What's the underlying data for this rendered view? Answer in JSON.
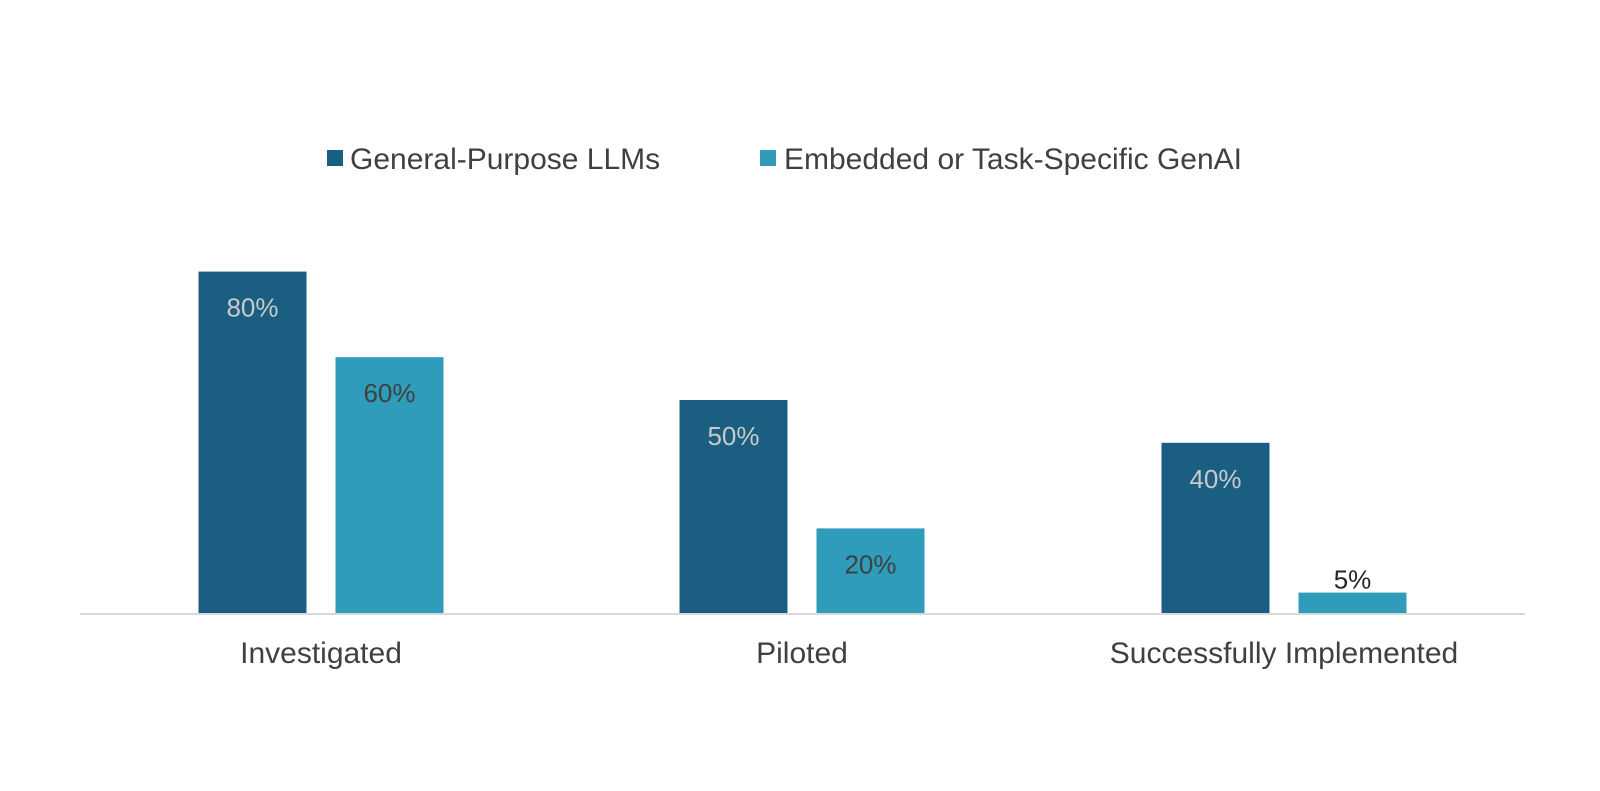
{
  "chart_data": {
    "type": "bar",
    "categories": [
      "Investigated",
      "Piloted",
      "Successfully Implemented"
    ],
    "series": [
      {
        "name": "General-Purpose LLMs",
        "values": [
          80,
          50,
          40
        ],
        "color": "#1a5e82",
        "label_color": "#c9c9c9"
      },
      {
        "name": "Embedded or Task-Specific GenAI",
        "values": [
          60,
          20,
          5
        ],
        "color": "#2e9cba",
        "label_color": "#404040"
      }
    ],
    "value_suffix": "%",
    "ylim": [
      0,
      80
    ],
    "grid": false,
    "legend": "top-center",
    "baseline_color": "#d9d9d9"
  }
}
